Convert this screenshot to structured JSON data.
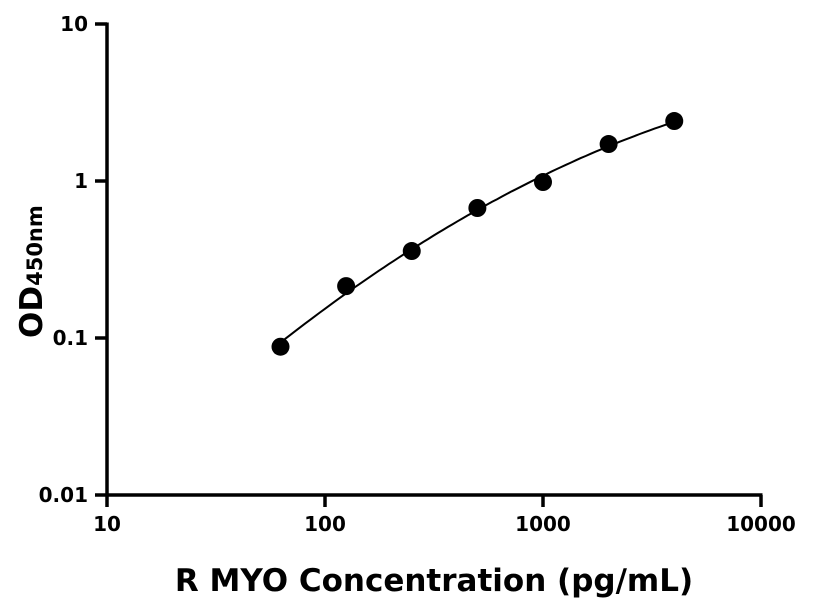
{
  "chart_data": {
    "type": "scatter",
    "title": "",
    "xlabel": "R MYO Concentration (pg/mL)",
    "ylabel": "OD",
    "ylabel_subscript": "450nm",
    "xscale": "log",
    "yscale": "log",
    "xlim": [
      10,
      10000
    ],
    "ylim": [
      0.01,
      10
    ],
    "xticks": [
      10,
      100,
      1000,
      10000
    ],
    "xtick_labels": [
      "10",
      "100",
      "1000",
      "10000"
    ],
    "yticks": [
      0.01,
      0.1,
      1,
      10
    ],
    "ytick_labels": [
      "0.01",
      "0.1",
      "1",
      "10"
    ],
    "grid": false,
    "fit_curve": true,
    "marker_color": "#000000",
    "points": {
      "x": [
        62.5,
        125,
        250,
        500,
        1000,
        2000,
        4000
      ],
      "y": [
        0.088,
        0.214,
        0.358,
        0.673,
        0.985,
        1.72,
        2.41
      ]
    }
  }
}
